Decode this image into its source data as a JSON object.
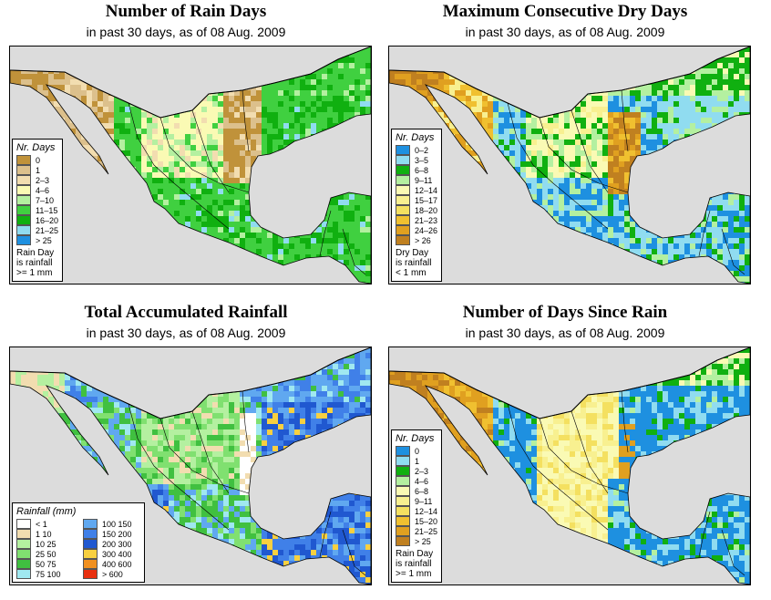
{
  "panels": [
    {
      "title": "Number of Rain Days",
      "subtitle": "in past 30 days, as of  08 Aug. 2009",
      "legend_title": "Nr. Days",
      "legend": [
        {
          "label": "0",
          "color": "#c0923a"
        },
        {
          "label": "1",
          "color": "#dcc08c"
        },
        {
          "label": "2–3",
          "color": "#f2ddb0"
        },
        {
          "label": "4–6",
          "color": "#fafab4"
        },
        {
          "label": "7–10",
          "color": "#b4f0a0"
        },
        {
          "label": "11–15",
          "color": "#40d040"
        },
        {
          "label": "16–20",
          "color": "#10b010"
        },
        {
          "label": "21–25",
          "color": "#90dcf0"
        },
        {
          "label": "> 25",
          "color": "#1e90e0"
        }
      ],
      "note": [
        "Rain Day",
        "is rainfall",
        ">= 1 mm"
      ]
    },
    {
      "title": "Maximum Consecutive Dry Days",
      "subtitle": "in past 30 days, as of  08 Aug. 2009",
      "legend_title": "Nr. Days",
      "legend": [
        {
          "label": "0–2",
          "color": "#1e90e0"
        },
        {
          "label": "3–5",
          "color": "#90dcf0"
        },
        {
          "label": "6–8",
          "color": "#10b010"
        },
        {
          "label": "9–11",
          "color": "#b4f0a0"
        },
        {
          "label": "12–14",
          "color": "#fafab4"
        },
        {
          "label": "15–17",
          "color": "#f8f090"
        },
        {
          "label": "18–20",
          "color": "#f4e060"
        },
        {
          "label": "21–23",
          "color": "#f0c030"
        },
        {
          "label": "24–26",
          "color": "#e0a020"
        },
        {
          "label": "> 26",
          "color": "#c08020"
        }
      ],
      "note": [
        "Dry Day",
        "is rainfall",
        "< 1 mm"
      ]
    },
    {
      "title": "Total Accumulated Rainfall",
      "subtitle": "in past 30 days, as of  08 Aug. 2009",
      "legend_title": "Rainfall (mm)",
      "legend": [
        {
          "label": "< 1",
          "color": "#ffffff"
        },
        {
          "label": "1   10",
          "color": "#f2ddb0"
        },
        {
          "label": "10   25",
          "color": "#b4f0a0"
        },
        {
          "label": "25   50",
          "color": "#80e070"
        },
        {
          "label": "50   75",
          "color": "#40c040"
        },
        {
          "label": "75   100",
          "color": "#a0e8f0"
        },
        {
          "label": "100   150",
          "color": "#60a8f0"
        },
        {
          "label": "150   200",
          "color": "#4080e8"
        },
        {
          "label": "200   300",
          "color": "#2058d0"
        },
        {
          "label": "300   400",
          "color": "#f8d040"
        },
        {
          "label": "400   600",
          "color": "#f09020"
        },
        {
          "label": "> 600",
          "color": "#e83010"
        }
      ],
      "note": []
    },
    {
      "title": "Number of Days Since Rain",
      "subtitle": "in past 30 days, as of  08 Aug. 2009",
      "legend_title": "Nr. Days",
      "legend": [
        {
          "label": "0",
          "color": "#1e90e0"
        },
        {
          "label": "1",
          "color": "#90dcf0"
        },
        {
          "label": "2–3",
          "color": "#10b010"
        },
        {
          "label": "4–6",
          "color": "#b4f0a0"
        },
        {
          "label": "6–8",
          "color": "#fafab4"
        },
        {
          "label": "9–11",
          "color": "#f8f090"
        },
        {
          "label": "12–14",
          "color": "#f4e060"
        },
        {
          "label": "15–20",
          "color": "#f0c030"
        },
        {
          "label": "21–25",
          "color": "#e0a020"
        },
        {
          "label": "> 25",
          "color": "#c08020"
        }
      ],
      "note": [
        "Rain Day",
        "is rainfall",
        ">= 1 mm"
      ]
    }
  ],
  "colors": {
    "ocean": "#dcdcdc",
    "border": "#000000"
  }
}
